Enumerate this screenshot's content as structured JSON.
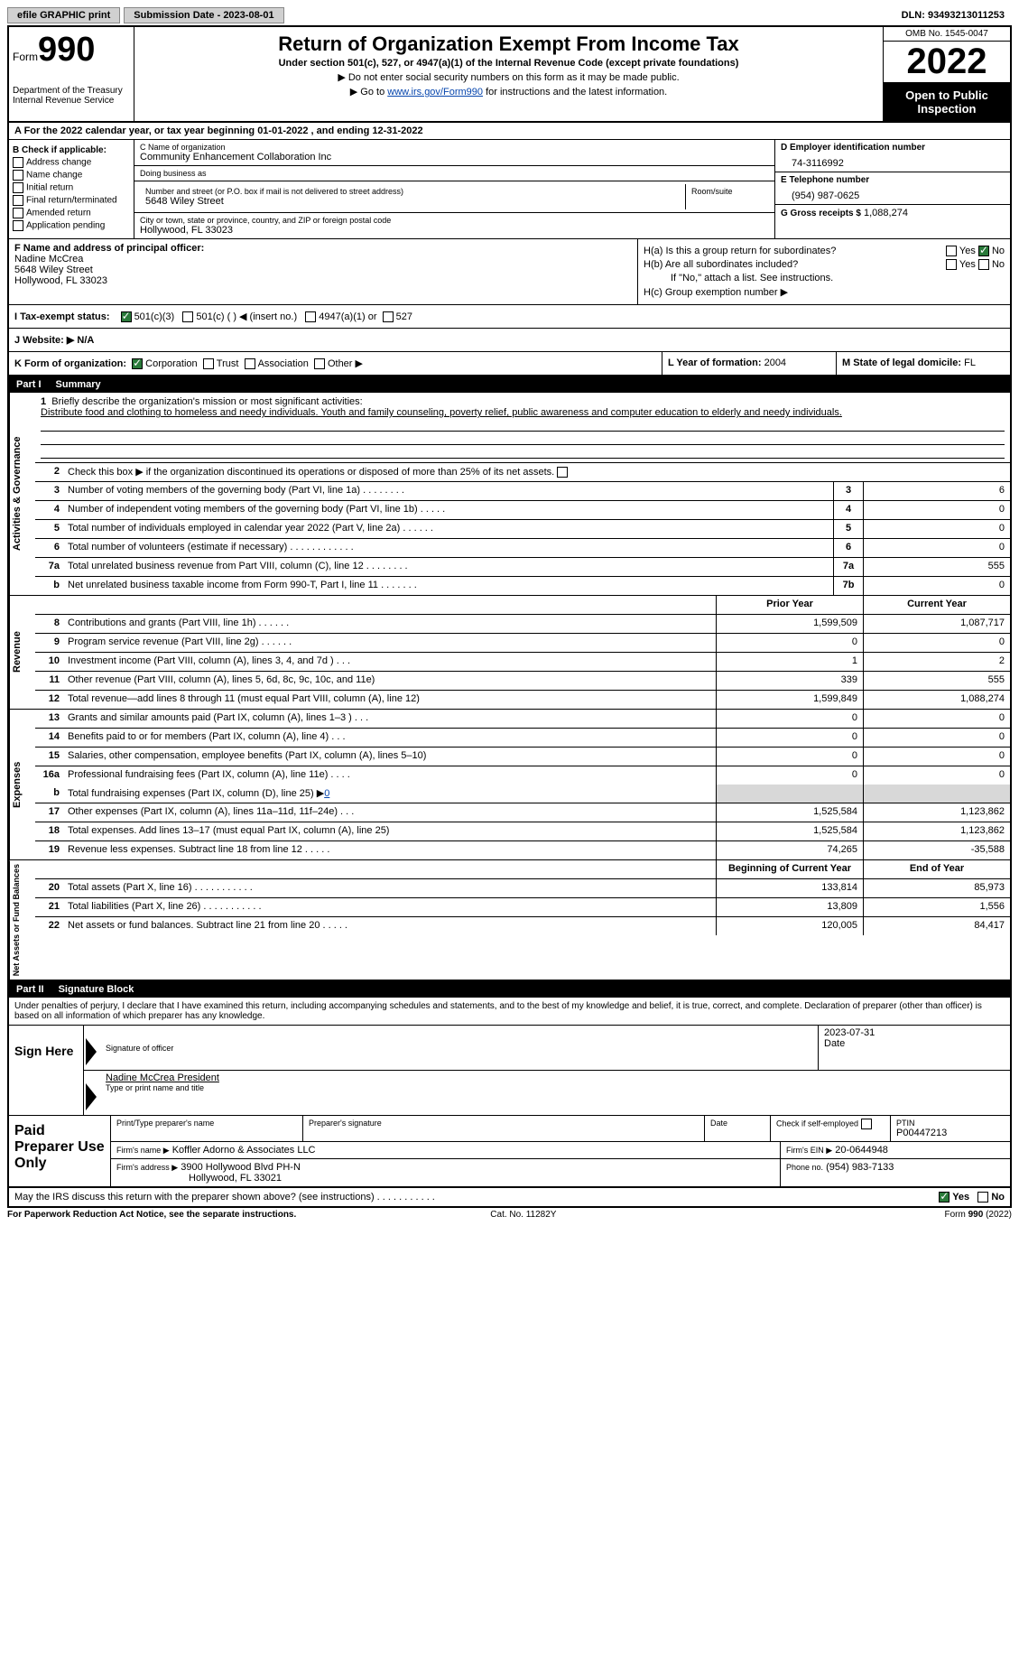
{
  "topbar": {
    "efile": "efile GRAPHIC print",
    "submission": "Submission Date - 2023-08-01",
    "dln": "DLN: 93493213011253"
  },
  "header": {
    "form_word": "Form",
    "form_num": "990",
    "title": "Return of Organization Exempt From Income Tax",
    "subtitle": "Under section 501(c), 527, or 4947(a)(1) of the Internal Revenue Code (except private foundations)",
    "note1": "▶ Do not enter social security numbers on this form as it may be made public.",
    "note2_pre": "▶ Go to ",
    "note2_link": "www.irs.gov/Form990",
    "note2_post": " for instructions and the latest information.",
    "dept": "Department of the Treasury",
    "irs": "Internal Revenue Service",
    "omb": "OMB No. 1545-0047",
    "year": "2022",
    "open": "Open to Public Inspection"
  },
  "lineA": "A For the 2022 calendar year, or tax year beginning 01-01-2022   , and ending 12-31-2022",
  "sectionB": {
    "title": "B Check if applicable:",
    "opts": [
      "Address change",
      "Name change",
      "Initial return",
      "Final return/terminated",
      "Amended return",
      "Application pending"
    ]
  },
  "sectionC": {
    "name_label": "C Name of organization",
    "name": "Community Enhancement Collaboration Inc",
    "dba_label": "Doing business as",
    "dba": "",
    "street_label": "Number and street (or P.O. box if mail is not delivered to street address)",
    "street": "5648 Wiley Street",
    "room_label": "Room/suite",
    "city_label": "City or town, state or province, country, and ZIP or foreign postal code",
    "city": "Hollywood, FL  33023"
  },
  "sectionD": {
    "ein_label": "D Employer identification number",
    "ein": "74-3116992",
    "phone_label": "E Telephone number",
    "phone": "(954) 987-0625",
    "gross_label": "G Gross receipts $",
    "gross": "1,088,274"
  },
  "sectionF": {
    "label": "F Name and address of principal officer:",
    "name": "Nadine McCrea",
    "street": "5648 Wiley Street",
    "city": "Hollywood, FL  33023"
  },
  "sectionH": {
    "ha_label": "H(a)  Is this a group return for subordinates?",
    "hb_label": "H(b)  Are all subordinates included?",
    "hb_note": "If \"No,\" attach a list. See instructions.",
    "hc_label": "H(c)  Group exemption number ▶",
    "yes": "Yes",
    "no": "No"
  },
  "sectionI": {
    "label": "I  Tax-exempt status:",
    "opt1": "501(c)(3)",
    "opt2": "501(c) (   ) ◀ (insert no.)",
    "opt3": "4947(a)(1) or",
    "opt4": "527"
  },
  "sectionJ": "J  Website: ▶   N/A",
  "sectionK": {
    "label": "K Form of organization:",
    "opts": [
      "Corporation",
      "Trust",
      "Association",
      "Other ▶"
    ],
    "l_label": "L Year of formation:",
    "l_val": "2004",
    "m_label": "M State of legal domicile:",
    "m_val": "FL"
  },
  "parts": {
    "p1": "Part I",
    "p1_title": "Summary",
    "p2": "Part II",
    "p2_title": "Signature Block"
  },
  "sides": {
    "act": "Activities & Governance",
    "rev": "Revenue",
    "exp": "Expenses",
    "net": "Net Assets or Fund Balances"
  },
  "summary": {
    "l1_label": "Briefly describe the organization's mission or most significant activities:",
    "l1_text": "Distribute food and clothing to homeless and needy individuals. Youth and family counseling, poverty relief, public awareness and computer education to elderly and needy individuals.",
    "l2": "Check this box ▶     if the organization discontinued its operations or disposed of more than 25% of its net assets.",
    "l3": "Number of voting members of the governing body (Part VI, line 1a)   .    .    .    .    .    .    .    .",
    "l3_v": "6",
    "l4": "Number of independent voting members of the governing body (Part VI, line 1b)   .    .    .    .    .",
    "l4_v": "0",
    "l5": "Total number of individuals employed in calendar year 2022 (Part V, line 2a)   .    .    .    .    .    .",
    "l5_v": "0",
    "l6": "Total number of volunteers (estimate if necessary)   .    .    .    .    .    .    .    .    .    .    .    .",
    "l6_v": "0",
    "l7a": "Total unrelated business revenue from Part VIII, column (C), line 12   .    .    .    .    .    .    .    .",
    "l7a_v": "555",
    "l7b": "Net unrelated business taxable income from Form 990-T, Part I, line 11   .    .    .    .    .    .    .",
    "l7b_v": "0",
    "prior": "Prior Year",
    "current": "Current Year",
    "rows": [
      {
        "n": "8",
        "d": "Contributions and grants (Part VIII, line 1h)   .    .    .    .    .    .",
        "p": "1,599,509",
        "c": "1,087,717"
      },
      {
        "n": "9",
        "d": "Program service revenue (Part VIII, line 2g)   .    .    .    .    .    .",
        "p": "0",
        "c": "0"
      },
      {
        "n": "10",
        "d": "Investment income (Part VIII, column (A), lines 3, 4, and 7d )   .    .    .",
        "p": "1",
        "c": "2"
      },
      {
        "n": "11",
        "d": "Other revenue (Part VIII, column (A), lines 5, 6d, 8c, 9c, 10c, and 11e)",
        "p": "339",
        "c": "555"
      },
      {
        "n": "12",
        "d": "Total revenue—add lines 8 through 11 (must equal Part VIII, column (A), line 12)",
        "p": "1,599,849",
        "c": "1,088,274"
      }
    ],
    "exp_rows": [
      {
        "n": "13",
        "d": "Grants and similar amounts paid (Part IX, column (A), lines 1–3 )   .    .    .",
        "p": "0",
        "c": "0"
      },
      {
        "n": "14",
        "d": "Benefits paid to or for members (Part IX, column (A), line 4)   .    .    .",
        "p": "0",
        "c": "0"
      },
      {
        "n": "15",
        "d": "Salaries, other compensation, employee benefits (Part IX, column (A), lines 5–10)",
        "p": "0",
        "c": "0"
      },
      {
        "n": "16a",
        "d": "Professional fundraising fees (Part IX, column (A), line 11e)   .    .    .    .",
        "p": "0",
        "c": "0"
      }
    ],
    "l16b_pre": "Total fundraising expenses (Part IX, column (D), line 25) ▶",
    "l16b_v": "0",
    "exp_rows2": [
      {
        "n": "17",
        "d": "Other expenses (Part IX, column (A), lines 11a–11d, 11f–24e)   .    .    .",
        "p": "1,525,584",
        "c": "1,123,862"
      },
      {
        "n": "18",
        "d": "Total expenses. Add lines 13–17 (must equal Part IX, column (A), line 25)",
        "p": "1,525,584",
        "c": "1,123,862"
      },
      {
        "n": "19",
        "d": "Revenue less expenses. Subtract line 18 from line 12   .    .    .    .    .",
        "p": "74,265",
        "c": "-35,588"
      }
    ],
    "boy": "Beginning of Current Year",
    "eoy": "End of Year",
    "net_rows": [
      {
        "n": "20",
        "d": "Total assets (Part X, line 16)   .    .    .    .    .    .    .    .    .    .    .",
        "p": "133,814",
        "c": "85,973"
      },
      {
        "n": "21",
        "d": "Total liabilities (Part X, line 26)   .    .    .    .    .    .    .    .    .    .    .",
        "p": "13,809",
        "c": "1,556"
      },
      {
        "n": "22",
        "d": "Net assets or fund balances. Subtract line 21 from line 20   .    .    .    .    .",
        "p": "120,005",
        "c": "84,417"
      }
    ]
  },
  "sig": {
    "intro": "Under penalties of perjury, I declare that I have examined this return, including accompanying schedules and statements, and to the best of my knowledge and belief, it is true, correct, and complete. Declaration of preparer (other than officer) is based on all information of which preparer has any knowledge.",
    "sign_here": "Sign Here",
    "sig_officer": "Signature of officer",
    "date_label": "Date",
    "date_val": "2023-07-31",
    "name_title": "Nadine McCrea  President",
    "name_title_label": "Type or print name and title"
  },
  "paid": {
    "title": "Paid Preparer Use Only",
    "print_label": "Print/Type preparer's name",
    "prep_sig": "Preparer's signature",
    "date": "Date",
    "check_label": "Check         if self-employed",
    "ptin_label": "PTIN",
    "ptin": "P00447213",
    "firm_name_label": "Firm's name    ▶",
    "firm_name": "Koffler Adorno & Associates LLC",
    "firm_ein_label": "Firm's EIN ▶",
    "firm_ein": "20-0644948",
    "firm_addr_label": "Firm's address ▶",
    "firm_addr1": "3900 Hollywood Blvd PH-N",
    "firm_addr2": "Hollywood, FL  33021",
    "phone_label": "Phone no.",
    "phone": "(954) 983-7133"
  },
  "footer": {
    "discuss": "May the IRS discuss this return with the preparer shown above? (see instructions)   .    .    .    .    .    .    .    .    .    .    .",
    "yes": "Yes",
    "no": "No",
    "pra": "For Paperwork Reduction Act Notice, see the separate instructions.",
    "cat": "Cat. No. 11282Y",
    "form": "Form 990 (2022)"
  }
}
